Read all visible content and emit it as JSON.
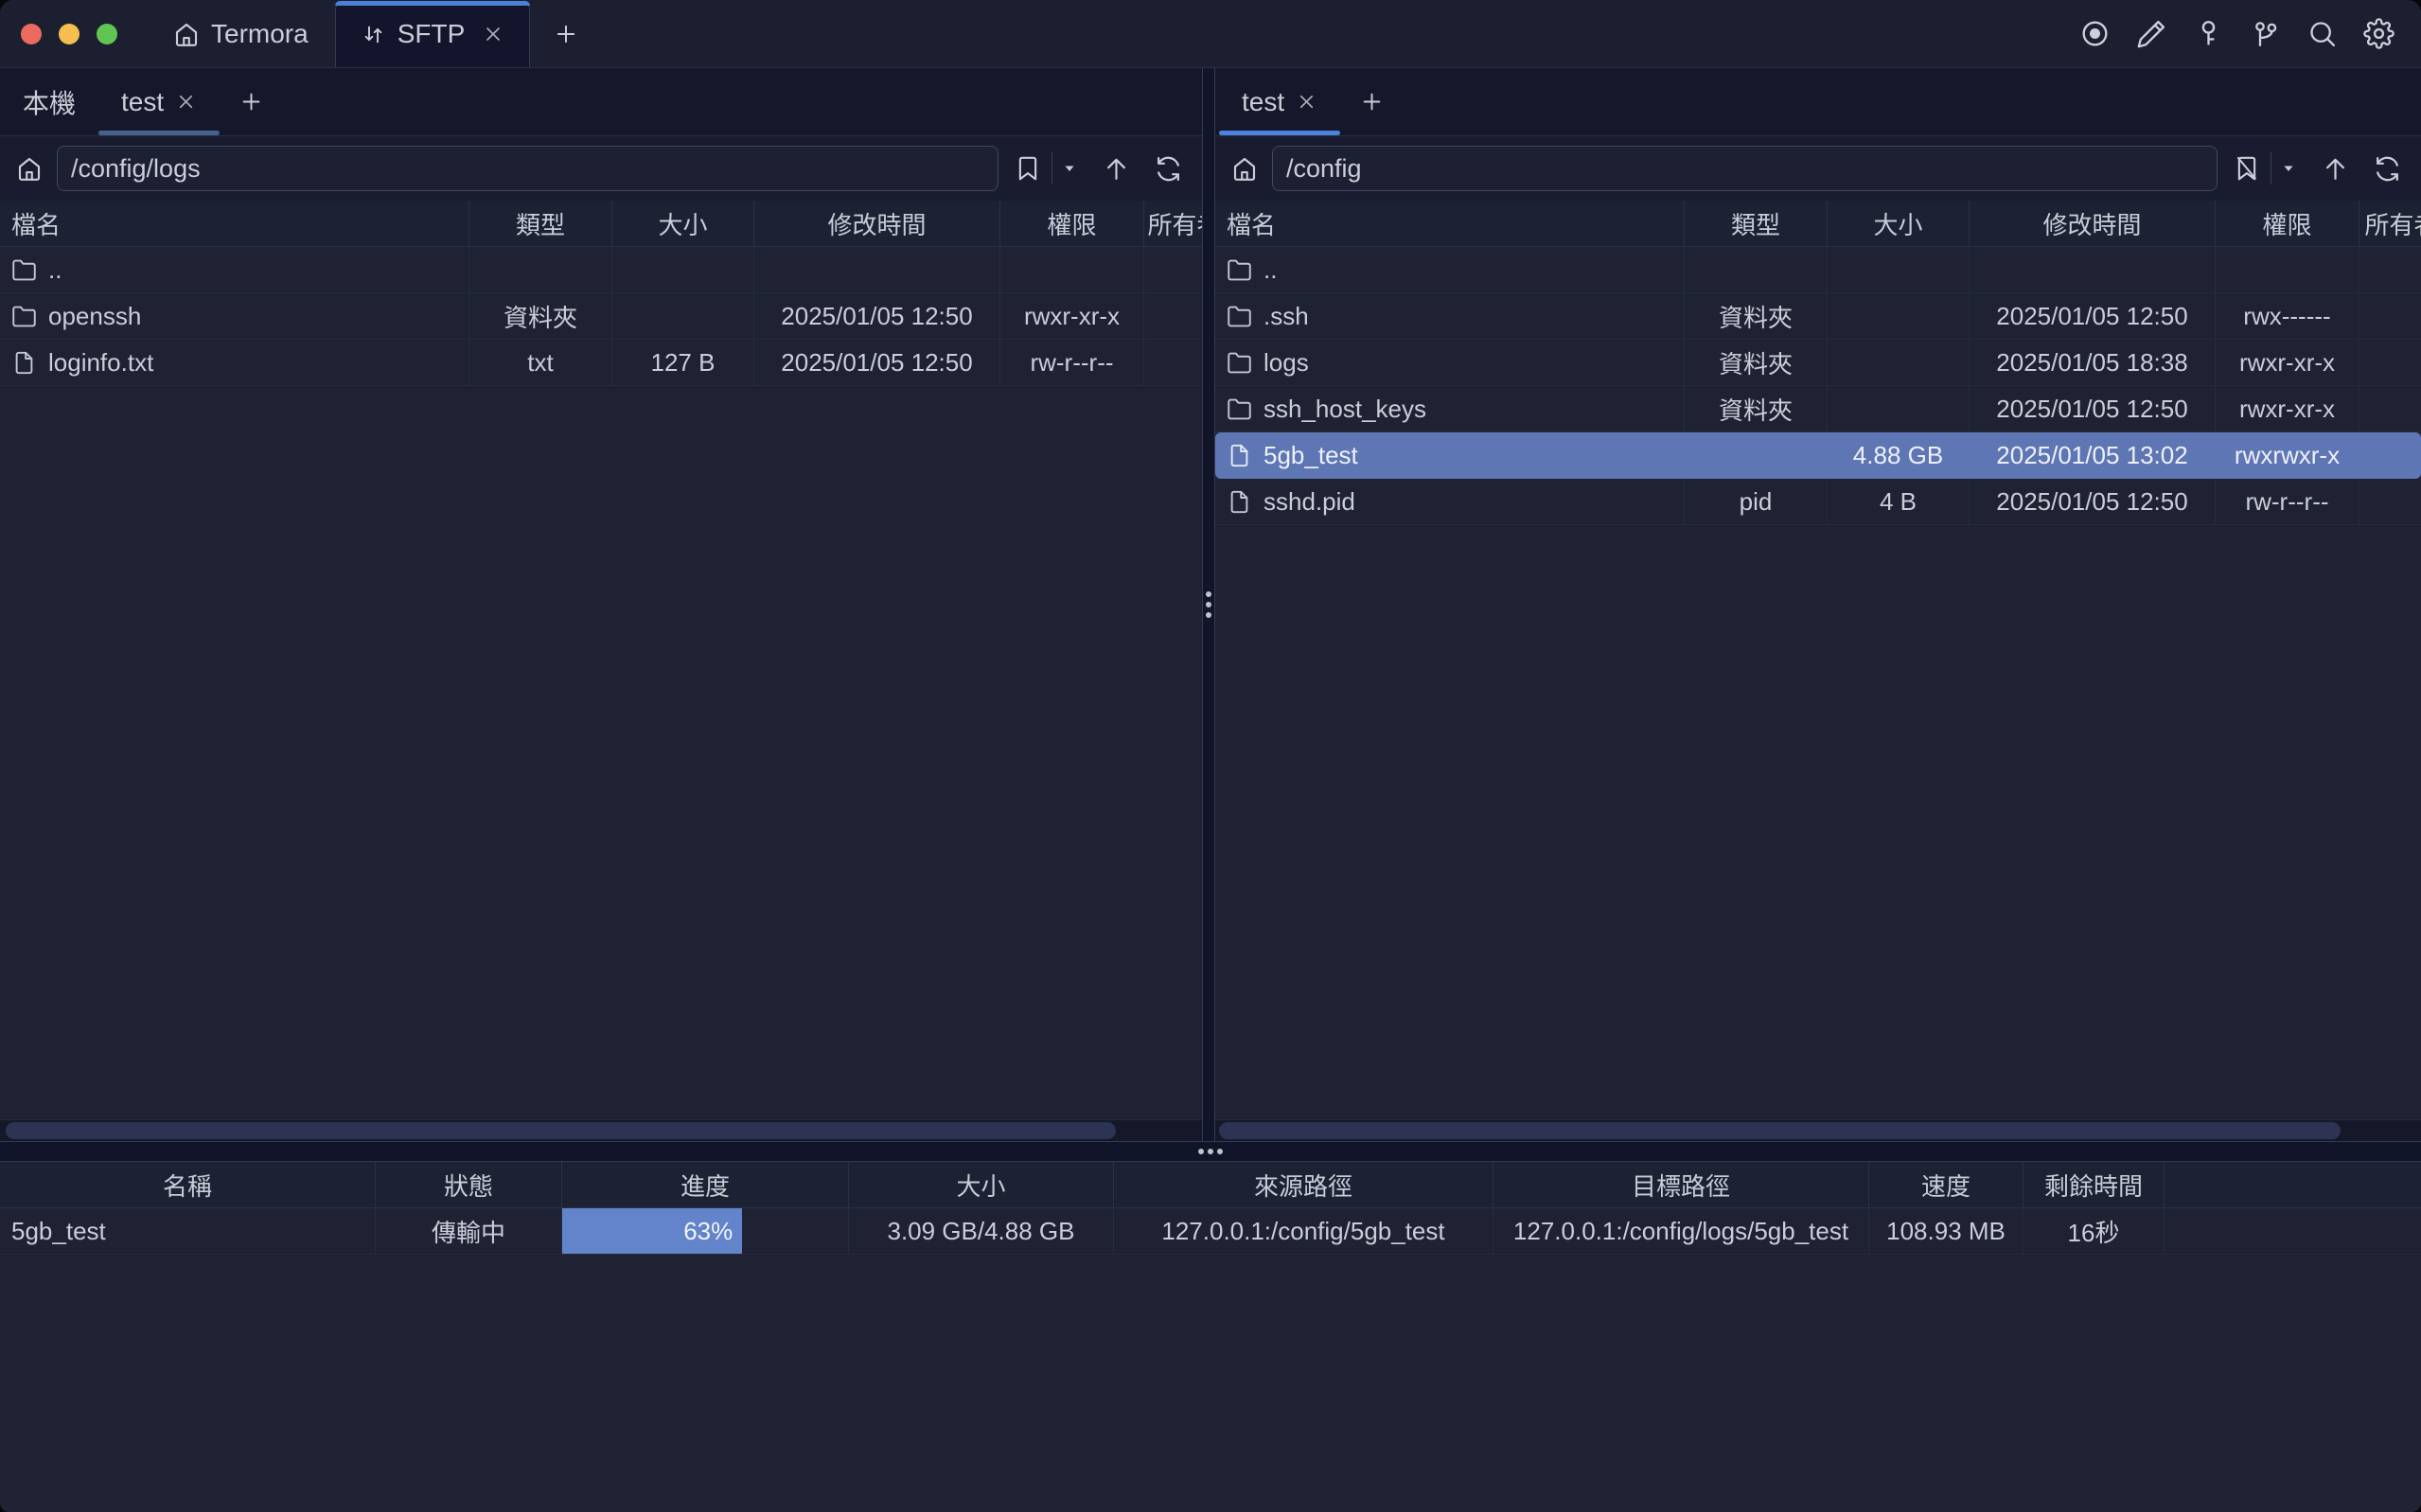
{
  "titlebar": {
    "app_tab": "Termora",
    "sftp_tab": "SFTP"
  },
  "left_pane": {
    "tab_local": "本機",
    "tab_session": "test",
    "path": "/config/logs",
    "columns": [
      "檔名",
      "類型",
      "大小",
      "修改時間",
      "權限",
      "所有者"
    ],
    "rows": [
      {
        "name": "..",
        "type": "",
        "size": "",
        "mtime": "",
        "perm": "",
        "owner": ""
      },
      {
        "name": "openssh",
        "type": "資料夾",
        "size": "",
        "mtime": "2025/01/05 12:50",
        "perm": "rwxr-xr-x",
        "owner": ""
      },
      {
        "name": "loginfo.txt",
        "type": "txt",
        "size": "127 B",
        "mtime": "2025/01/05 12:50",
        "perm": "rw-r--r--",
        "owner": ""
      }
    ]
  },
  "right_pane": {
    "tab_session": "test",
    "path": "/config",
    "columns": [
      "檔名",
      "類型",
      "大小",
      "修改時間",
      "權限",
      "所有者"
    ],
    "rows": [
      {
        "name": "..",
        "type": "",
        "size": "",
        "mtime": "",
        "perm": "",
        "owner": ""
      },
      {
        "name": ".ssh",
        "type": "資料夾",
        "size": "",
        "mtime": "2025/01/05 12:50",
        "perm": "rwx------",
        "owner": ""
      },
      {
        "name": "logs",
        "type": "資料夾",
        "size": "",
        "mtime": "2025/01/05 18:38",
        "perm": "rwxr-xr-x",
        "owner": ""
      },
      {
        "name": "ssh_host_keys",
        "type": "資料夾",
        "size": "",
        "mtime": "2025/01/05 12:50",
        "perm": "rwxr-xr-x",
        "owner": ""
      },
      {
        "name": "5gb_test",
        "type": "",
        "size": "4.88 GB",
        "mtime": "2025/01/05 13:02",
        "perm": "rwxrwxr-x",
        "owner": ""
      },
      {
        "name": "sshd.pid",
        "type": "pid",
        "size": "4 B",
        "mtime": "2025/01/05 12:50",
        "perm": "rw-r--r--",
        "owner": ""
      }
    ]
  },
  "transfers": {
    "columns": [
      "名稱",
      "狀態",
      "進度",
      "大小",
      "來源路徑",
      "目標路徑",
      "速度",
      "剩餘時間"
    ],
    "rows": [
      {
        "name": "5gb_test",
        "status": "傳輸中",
        "progress_pct": 63,
        "progress_label": "63%",
        "size": "3.09 GB/4.88 GB",
        "source": "127.0.0.1:/config/5gb_test",
        "target": "127.0.0.1:/config/logs/5gb_test",
        "speed": "108.93 MB",
        "eta": "16秒"
      }
    ]
  },
  "colors": {
    "accent_blue": "#4c80d6",
    "selection_blue": "#5e76b4",
    "progress_blue": "#6384ca",
    "left_tab_underline": "#46618f",
    "right_tab_underline": "#4c82dd",
    "traffic_red": "#ec6a5e",
    "traffic_yellow": "#f4bf4f",
    "traffic_green": "#61c554"
  }
}
